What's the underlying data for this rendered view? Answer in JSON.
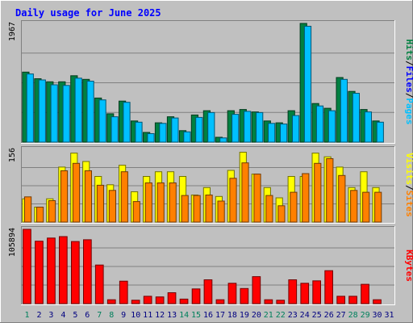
{
  "chart_data": {
    "title": "Daily usage for June 2025",
    "type": "bar",
    "days": [
      1,
      2,
      3,
      4,
      5,
      6,
      7,
      8,
      9,
      10,
      11,
      12,
      13,
      14,
      15,
      16,
      17,
      18,
      19,
      20,
      21,
      22,
      23,
      24,
      25,
      26,
      27,
      28,
      29,
      30,
      31
    ],
    "weekend_days": [
      1,
      7,
      8,
      14,
      15,
      21,
      22,
      28,
      29
    ],
    "panels": [
      {
        "id": "hits-files-pages",
        "ymax_label": "1967",
        "ymax": 1967,
        "series": [
          {
            "name": "Hits",
            "color": "#008040",
            "values": [
              1160,
              1050,
              1000,
              1000,
              1100,
              1040,
              730,
              470,
              680,
              350,
              160,
              320,
              420,
              190,
              450,
              520,
              80,
              520,
              540,
              500,
              350,
              320,
              520,
              1967,
              640,
              560,
              1070,
              840,
              540,
              350,
              0
            ]
          },
          {
            "name": "Files",
            "color": "#0000ff",
            "values": [
              0,
              0,
              0,
              0,
              0,
              0,
              0,
              0,
              0,
              0,
              0,
              0,
              0,
              0,
              0,
              0,
              0,
              0,
              0,
              0,
              0,
              0,
              0,
              0,
              0,
              0,
              0,
              0,
              0,
              0,
              0
            ]
          },
          {
            "name": "Pages",
            "color": "#00c0ff",
            "values": [
              1130,
              1030,
              950,
              940,
              1060,
              1010,
              700,
              420,
              660,
              330,
              140,
              310,
              400,
              170,
              410,
              490,
              70,
              460,
              510,
              490,
              310,
              300,
              440,
              1920,
              600,
              520,
              1040,
              810,
              500,
              330,
              0
            ]
          }
        ]
      },
      {
        "id": "visits-sites",
        "ymax_label": "156",
        "ymax": 156,
        "series": [
          {
            "name": "Visits",
            "color": "#ffff00",
            "values": [
              50,
              32,
              50,
              118,
              148,
              130,
              98,
              80,
              122,
              65,
              98,
              108,
              108,
              98,
              58,
              74,
              55,
              111,
              150,
              103,
              74,
              52,
              98,
              98,
              148,
              140,
              118,
              74,
              108,
              74,
              0
            ]
          },
          {
            "name": "Sites",
            "color": "#ff8000",
            "values": [
              54,
              32,
              46,
              110,
              126,
              110,
              79,
              68,
              108,
              44,
              84,
              84,
              84,
              57,
              57,
              58,
              45,
              94,
              127,
              103,
              57,
              35,
              64,
              104,
              126,
              136,
              100,
              68,
              64,
              64,
              0
            ]
          }
        ]
      },
      {
        "id": "kbytes",
        "ymax_label": "105894",
        "ymax": 105894,
        "series": [
          {
            "name": "KBytes",
            "color": "#ff0000",
            "values": [
              105894,
              89000,
              93500,
              95500,
              88500,
              91000,
              55000,
              5500,
              32000,
              4800,
              10500,
              9500,
              15500,
              6500,
              21000,
              34000,
              5500,
              29000,
              21500,
              38500,
              5500,
              4800,
              34000,
              29000,
              32500,
              47000,
              10500,
              10500,
              27500,
              5500,
              0
            ]
          }
        ]
      }
    ],
    "side_labels": {
      "panel1": [
        {
          "text": "Hits",
          "color": "#008040"
        },
        {
          "text": "/",
          "color": "#000000"
        },
        {
          "text": "Files",
          "color": "#0000ff"
        },
        {
          "text": "/",
          "color": "#000000"
        },
        {
          "text": "Pages",
          "color": "#00c0ff"
        }
      ],
      "panel2": [
        {
          "text": "Visits",
          "color": "#ffff00"
        },
        {
          "text": "/",
          "color": "#000000"
        },
        {
          "text": "Sites",
          "color": "#ff8000"
        }
      ],
      "panel3": [
        {
          "text": "KBytes",
          "color": "#ff0000"
        }
      ]
    },
    "colors": {
      "background": "#c0c0c0",
      "title": "#0000ff",
      "weekday_label": "#000080",
      "weekend_label": "#00805c"
    }
  }
}
